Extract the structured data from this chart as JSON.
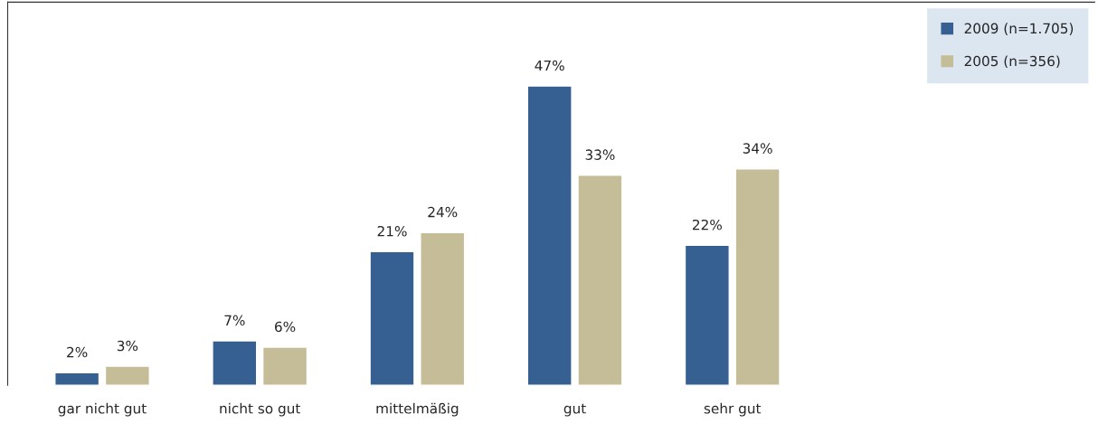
{
  "chart_data": {
    "type": "bar",
    "categories": [
      "gar nicht gut",
      "nicht so gut",
      "mittelmäßig",
      "gut",
      "sehr gut"
    ],
    "series": [
      {
        "name": "2009 (n=1.705)",
        "color": "#376092",
        "values": [
          2,
          7,
          21,
          47,
          22
        ],
        "value_labels": [
          "2%",
          "7%",
          "21%",
          "47%",
          "22%"
        ]
      },
      {
        "name": "2005 (n=356)",
        "color": "#c4bd97",
        "values": [
          3,
          6,
          24,
          33,
          34
        ],
        "value_labels": [
          "3%",
          "6%",
          "24%",
          "33%",
          "34%"
        ]
      }
    ],
    "legend": "top right",
    "grid": false
  }
}
